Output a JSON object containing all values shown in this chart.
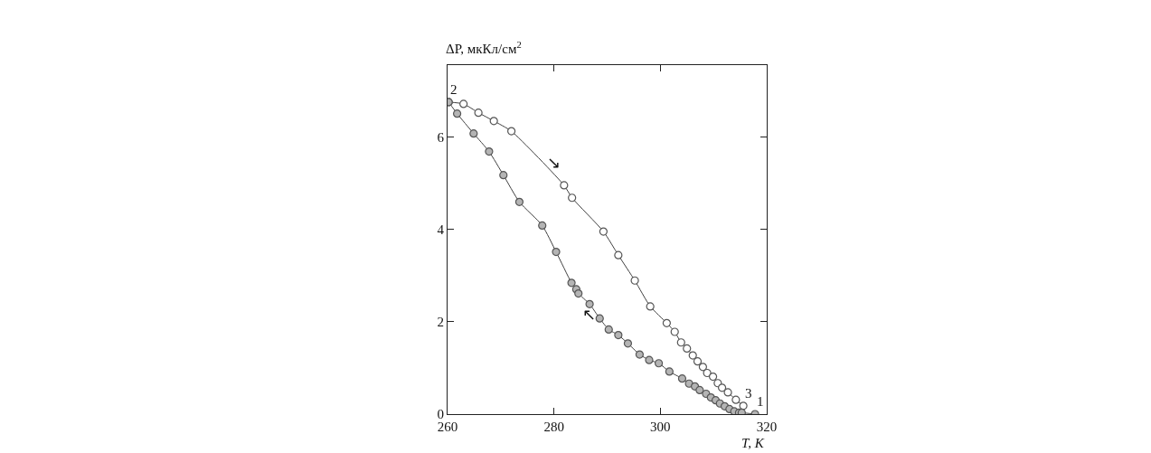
{
  "chart_data": {
    "type": "line",
    "xlabel": "T, К",
    "ylabel": "ΔP, мкКл/см$^{2}$",
    "xlim": [
      260,
      320
    ],
    "xticks": [
      260,
      280,
      300,
      320
    ],
    "ylim": [
      0,
      7.55
    ],
    "yticks": [
      0,
      2,
      4,
      6
    ],
    "marker": "circle",
    "line_style": "solid",
    "series": [
      {
        "color": "#ffffff",
        "x": [
          260.2,
          263.0,
          265.8,
          268.7,
          272.0,
          281.9,
          283.4,
          289.3,
          292.1,
          295.2,
          298.1,
          301.2,
          302.7,
          303.9,
          305.0,
          306.1,
          307.0,
          308.0,
          308.8,
          309.9,
          310.8,
          311.6,
          312.7,
          314.2,
          315.6
        ],
        "values": [
          6.75,
          6.71,
          6.52,
          6.34,
          6.12,
          4.95,
          4.68,
          3.95,
          3.44,
          2.89,
          2.33,
          1.97,
          1.78,
          1.55,
          1.42,
          1.27,
          1.14,
          1.02,
          0.89,
          0.81,
          0.67,
          0.57,
          0.47,
          0.31,
          0.18
        ]
      },
      {
        "color": "#b4b4b4",
        "x": [
          260.2,
          261.8,
          264.9,
          267.8,
          270.5,
          273.5,
          277.8,
          280.4,
          283.3,
          284.2,
          284.6,
          286.7,
          288.6,
          290.3,
          292.1,
          293.9,
          296.1,
          297.9,
          299.7,
          301.7,
          304.1,
          305.4,
          306.5,
          307.4,
          308.6,
          309.5,
          310.4,
          311.2,
          312.1,
          313.0,
          313.9,
          314.8,
          315.3,
          317.8
        ],
        "values": [
          6.75,
          6.5,
          6.07,
          5.68,
          5.17,
          4.59,
          4.08,
          3.51,
          2.84,
          2.7,
          2.61,
          2.38,
          2.07,
          1.83,
          1.71,
          1.53,
          1.29,
          1.17,
          1.1,
          0.92,
          0.77,
          0.66,
          0.6,
          0.52,
          0.44,
          0.36,
          0.3,
          0.23,
          0.17,
          0.11,
          0.06,
          0.03,
          0.03,
          0.0
        ]
      }
    ],
    "annotations": [
      {
        "text": "2",
        "x": 260.2,
        "y": 6.75
      },
      {
        "text": "3",
        "x": 315.6,
        "y": 0.18
      },
      {
        "text": "1",
        "x": 317.8,
        "y": 0.0
      },
      "↘",
      "↖"
    ]
  }
}
